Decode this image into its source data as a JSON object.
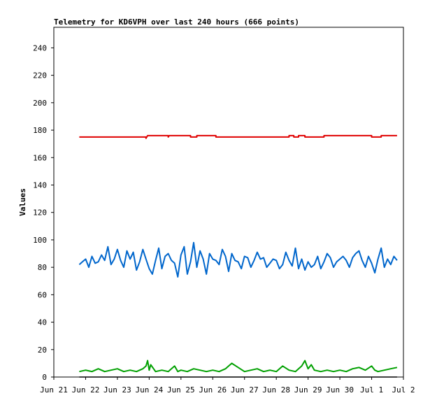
{
  "chart_data": {
    "type": "line",
    "title": "Telemetry for KD6VPH over last 240 hours (666 points)",
    "xlabel": "",
    "ylabel": "Values",
    "ylim": [
      0,
      255
    ],
    "yticks": [
      0,
      20,
      40,
      60,
      80,
      100,
      120,
      140,
      160,
      180,
      200,
      220,
      240
    ],
    "xlim": [
      "Jun 21",
      "Jul 2"
    ],
    "xticks": [
      "Jun 21",
      "Jun 22",
      "Jun 23",
      "Jun 24",
      "Jun 25",
      "Jun 26",
      "Jun 27",
      "Jun 28",
      "Jun 29",
      "Jun 30",
      "Jul 1",
      "Jul 2"
    ],
    "grid": false,
    "legend": "none",
    "series": [
      {
        "color": "#e00000",
        "x_days": [
          21.8,
          23.9,
          23.9,
          23.95,
          24.0,
          24.6,
          24.6,
          24.63,
          25.3,
          25.3,
          25.5,
          25.5,
          26.1,
          26.1,
          27.5,
          28.4,
          28.4,
          28.55,
          28.55,
          28.7,
          28.7,
          28.9,
          28.9,
          29.2,
          29.2,
          29.5,
          29.5,
          30.2,
          30.5,
          31.0,
          31.0,
          31.3,
          31.3,
          31.8
        ],
        "values": [
          175,
          175,
          174,
          176,
          176,
          176,
          175,
          176,
          176,
          175,
          175,
          176,
          176,
          175,
          175,
          175,
          176,
          176,
          175,
          175,
          176,
          176,
          175,
          175,
          175,
          175,
          176,
          176,
          176,
          176,
          175,
          175,
          176,
          176
        ]
      },
      {
        "color": "#0066cc",
        "x_days": [
          21.8,
          21.9,
          22.0,
          22.1,
          22.2,
          22.3,
          22.4,
          22.5,
          22.6,
          22.7,
          22.8,
          22.9,
          23.0,
          23.1,
          23.2,
          23.3,
          23.4,
          23.5,
          23.6,
          23.7,
          23.8,
          23.9,
          24.0,
          24.1,
          24.2,
          24.3,
          24.4,
          24.5,
          24.6,
          24.7,
          24.8,
          24.9,
          25.0,
          25.1,
          25.2,
          25.3,
          25.4,
          25.5,
          25.6,
          25.7,
          25.8,
          25.9,
          26.0,
          26.1,
          26.2,
          26.3,
          26.4,
          26.5,
          26.6,
          26.7,
          26.8,
          26.9,
          27.0,
          27.1,
          27.2,
          27.3,
          27.4,
          27.5,
          27.6,
          27.7,
          27.8,
          27.9,
          28.0,
          28.1,
          28.2,
          28.3,
          28.4,
          28.5,
          28.6,
          28.7,
          28.8,
          28.9,
          29.0,
          29.1,
          29.2,
          29.3,
          29.4,
          29.5,
          29.6,
          29.7,
          29.8,
          29.9,
          30.0,
          30.1,
          30.2,
          30.3,
          30.4,
          30.5,
          30.6,
          30.7,
          30.8,
          30.9,
          31.0,
          31.1,
          31.2,
          31.3,
          31.4,
          31.5,
          31.6,
          31.7,
          31.8
        ],
        "values": [
          82,
          84,
          86,
          80,
          88,
          83,
          84,
          89,
          85,
          95,
          82,
          86,
          93,
          85,
          80,
          92,
          86,
          91,
          78,
          84,
          93,
          86,
          79,
          75,
          85,
          94,
          79,
          88,
          90,
          85,
          83,
          73,
          89,
          95,
          75,
          84,
          98,
          80,
          92,
          86,
          75,
          90,
          86,
          85,
          82,
          93,
          88,
          77,
          90,
          85,
          84,
          79,
          88,
          87,
          80,
          85,
          91,
          86,
          87,
          80,
          83,
          86,
          85,
          79,
          82,
          91,
          85,
          81,
          94,
          79,
          86,
          78,
          84,
          80,
          82,
          88,
          79,
          84,
          90,
          87,
          80,
          84,
          86,
          88,
          85,
          80,
          87,
          90,
          92,
          85,
          80,
          88,
          83,
          76,
          86,
          94,
          80,
          86,
          82,
          88,
          85
        ]
      },
      {
        "color": "#00a000",
        "x_days": [
          21.8,
          22.0,
          22.2,
          22.4,
          22.6,
          22.8,
          23.0,
          23.2,
          23.4,
          23.6,
          23.8,
          23.9,
          23.95,
          24.0,
          24.05,
          24.2,
          24.4,
          24.6,
          24.8,
          24.9,
          25.0,
          25.2,
          25.4,
          25.6,
          25.8,
          26.0,
          26.2,
          26.4,
          26.5,
          26.6,
          26.8,
          27.0,
          27.2,
          27.4,
          27.6,
          27.8,
          28.0,
          28.2,
          28.4,
          28.6,
          28.8,
          28.9,
          29.0,
          29.1,
          29.2,
          29.4,
          29.6,
          29.8,
          30.0,
          30.2,
          30.4,
          30.6,
          30.8,
          31.0,
          31.1,
          31.2,
          31.4,
          31.6,
          31.8
        ],
        "values": [
          4,
          5,
          4,
          6,
          4,
          5,
          6,
          4,
          5,
          4,
          6,
          8,
          12,
          5,
          9,
          4,
          5,
          4,
          8,
          4,
          5,
          4,
          6,
          5,
          4,
          5,
          4,
          6,
          8,
          10,
          7,
          4,
          5,
          6,
          4,
          5,
          4,
          8,
          5,
          4,
          8,
          12,
          6,
          9,
          5,
          4,
          5,
          4,
          5,
          4,
          6,
          7,
          5,
          8,
          5,
          4,
          5,
          6,
          7
        ]
      },
      {
        "color": "#000000",
        "x_days": [
          21.8,
          31.8
        ],
        "values": [
          0,
          0
        ]
      }
    ]
  }
}
